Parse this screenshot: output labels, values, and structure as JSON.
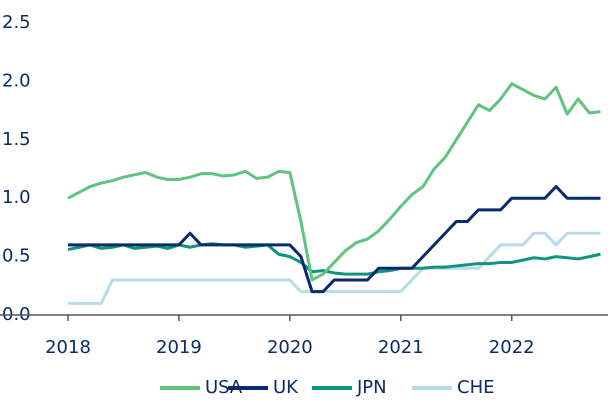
{
  "chart_data": {
    "type": "line",
    "x": [
      2018,
      2018.1,
      2018.2,
      2018.3,
      2018.4,
      2018.5,
      2018.6,
      2018.7,
      2018.8,
      2018.9,
      2019,
      2019.1,
      2019.2,
      2019.3,
      2019.4,
      2019.5,
      2019.6,
      2019.7,
      2019.8,
      2019.9,
      2020,
      2020.1,
      2020.2,
      2020.3,
      2020.4,
      2020.5,
      2020.6,
      2020.7,
      2020.8,
      2020.9,
      2021,
      2021.1,
      2021.2,
      2021.3,
      2021.4,
      2021.5,
      2021.6,
      2021.7,
      2021.8,
      2021.9,
      2022,
      2022.1,
      2022.2,
      2022.3,
      2022.4,
      2022.5,
      2022.6,
      2022.7,
      2022.8
    ],
    "series": [
      {
        "name": "USA",
        "color": "#5ec47e",
        "values": [
          1.0,
          1.05,
          1.1,
          1.13,
          1.15,
          1.18,
          1.2,
          1.22,
          1.18,
          1.16,
          1.16,
          1.18,
          1.21,
          1.21,
          1.19,
          1.2,
          1.23,
          1.17,
          1.18,
          1.23,
          1.22,
          0.8,
          0.3,
          0.35,
          0.45,
          0.55,
          0.62,
          0.65,
          0.72,
          0.82,
          0.93,
          1.03,
          1.1,
          1.25,
          1.35,
          1.5,
          1.65,
          1.8,
          1.75,
          1.85,
          1.98,
          1.93,
          1.88,
          1.85,
          1.95,
          1.72,
          1.85,
          1.73,
          1.74
        ]
      },
      {
        "name": "UK",
        "color": "#0a2a6b",
        "values": [
          0.6,
          0.6,
          0.6,
          0.6,
          0.6,
          0.6,
          0.6,
          0.6,
          0.6,
          0.6,
          0.6,
          0.7,
          0.6,
          0.6,
          0.6,
          0.6,
          0.6,
          0.6,
          0.6,
          0.6,
          0.6,
          0.5,
          0.2,
          0.2,
          0.3,
          0.3,
          0.3,
          0.3,
          0.4,
          0.4,
          0.4,
          0.4,
          0.5,
          0.6,
          0.7,
          0.8,
          0.8,
          0.9,
          0.9,
          0.9,
          1.0,
          1.0,
          1.0,
          1.0,
          1.1,
          1.0,
          1.0,
          1.0,
          1.0
        ]
      },
      {
        "name": "JPN",
        "color": "#0f9480",
        "values": [
          0.56,
          0.58,
          0.6,
          0.57,
          0.58,
          0.6,
          0.57,
          0.58,
          0.59,
          0.57,
          0.6,
          0.58,
          0.6,
          0.61,
          0.6,
          0.6,
          0.58,
          0.59,
          0.6,
          0.52,
          0.5,
          0.45,
          0.37,
          0.38,
          0.36,
          0.35,
          0.35,
          0.35,
          0.37,
          0.38,
          0.4,
          0.4,
          0.4,
          0.41,
          0.41,
          0.42,
          0.43,
          0.44,
          0.44,
          0.45,
          0.45,
          0.47,
          0.49,
          0.48,
          0.5,
          0.49,
          0.48,
          0.5,
          0.52
        ]
      },
      {
        "name": "CHE",
        "color": "#b7dbe8",
        "values": [
          0.1,
          0.1,
          0.1,
          0.1,
          0.3,
          0.3,
          0.3,
          0.3,
          0.3,
          0.3,
          0.3,
          0.3,
          0.3,
          0.3,
          0.3,
          0.3,
          0.3,
          0.3,
          0.3,
          0.3,
          0.3,
          0.2,
          0.2,
          0.2,
          0.2,
          0.2,
          0.2,
          0.2,
          0.2,
          0.2,
          0.2,
          0.3,
          0.4,
          0.4,
          0.4,
          0.4,
          0.4,
          0.4,
          0.5,
          0.6,
          0.6,
          0.6,
          0.7,
          0.7,
          0.6,
          0.7,
          0.7,
          0.7,
          0.7
        ]
      }
    ],
    "xlim": [
      2018,
      2022.85
    ],
    "xticks": [
      2018,
      2019,
      2020,
      2021,
      2022
    ],
    "ylim": [
      0,
      2.5
    ],
    "yticks": [
      {
        "value": 0,
        "label": "0.0"
      },
      0.5,
      {
        "value": 1,
        "label": "1.0"
      },
      1.5,
      {
        "value": 2,
        "label": "2.0"
      },
      2.5
    ],
    "legend": "bottom"
  }
}
